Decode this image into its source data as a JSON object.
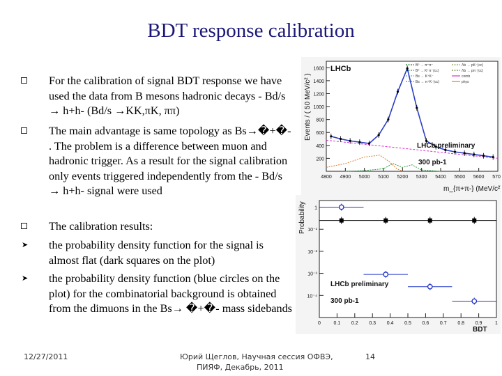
{
  "slide": {
    "title": "BDT response calibration",
    "bullets": [
      {
        "marker": "square",
        "text": "For the calibration of signal BDT response we have used the data from B mesons hadronic decays -  Bd/s → h+h-  (Bd/s →KK,πK, ππ)"
      },
      {
        "marker": "square",
        "text": "The main advantage is same topology as Bs→�+�- . The problem is a difference between muon and hadronic trigger. As a result for the signal calibration only events triggered independently from the - Bd/s → h+h-   signal were used"
      },
      {
        "marker": "square",
        "text": "The calibration results:"
      },
      {
        "marker": "arrow",
        "text": "the probability density function for the signal is almost flat (dark squares on the plot)"
      },
      {
        "marker": "arrow",
        "text": "the probability density function (blue  circles on the plot) for the combinatorial background is obtained from the dimuons in the Bs→ �+�- mass sidebands"
      }
    ],
    "footer": {
      "date": "12/27/2011",
      "author_line1": "Юрий Щеглов, Научная сессия ОФВЭ,",
      "author_line2": "ПИЯФ, Декабрь, 2011",
      "page_number": "14"
    }
  },
  "chart_data": [
    {
      "type": "line",
      "title": "",
      "header_label": "LHCb",
      "xlabel": "m_{π+π-} (MeV/c²)",
      "ylabel": "Events / ( 50 MeV/c² )",
      "xlim": [
        4800,
        5700
      ],
      "ylim": [
        0,
        1700
      ],
      "x_ticks": [
        4800,
        4900,
        5000,
        5100,
        5200,
        5300,
        5400,
        5500,
        5600,
        5700
      ],
      "y_ticks": [
        200,
        400,
        600,
        800,
        1000,
        1200,
        1400,
        1600
      ],
      "legend_entries": [
        "B⁰ → π⁺π⁻",
        "B⁰ → K⁺π⁻(cc)",
        "Bs → K⁺K⁻",
        "Bs → π⁺K⁻(cc)",
        "Λb → pK⁻(cc)",
        "Λb → pπ⁻(cc)",
        "comb",
        "phys"
      ],
      "annotations": [
        "LHCb preliminary",
        "300 pb-1"
      ],
      "colors": {
        "total": "#2b3fc4",
        "data": "#000000",
        "comb": "#d92fd0",
        "phys": "#e07a2a",
        "peaks": "#2e9d47"
      },
      "series": [
        {
          "name": "data",
          "x": [
            4825,
            4875,
            4925,
            4975,
            5025,
            5075,
            5125,
            5175,
            5225,
            5275,
            5325,
            5375,
            5425,
            5475,
            5525,
            5575,
            5625,
            5675
          ],
          "values": [
            540,
            500,
            470,
            450,
            430,
            560,
            800,
            1230,
            1590,
            980,
            470,
            380,
            330,
            300,
            280,
            260,
            240,
            220
          ]
        },
        {
          "name": "comb",
          "x": [
            4800,
            5700
          ],
          "values": [
            480,
            200
          ]
        }
      ]
    },
    {
      "type": "scatter",
      "title": "",
      "xlabel": "BDT",
      "ylabel": "Probability",
      "log_y": true,
      "xlim": [
        0,
        1
      ],
      "ylim": [
        1e-05,
        2
      ],
      "x_ticks": [
        0,
        0.1,
        0.2,
        0.3,
        0.4,
        0.5,
        0.6,
        0.7,
        0.8,
        0.9,
        1
      ],
      "y_tick_labels": [
        "1",
        "10⁻¹",
        "10⁻²",
        "10⁻³",
        "10⁻⁴"
      ],
      "annotations": [
        "LHCb preliminary",
        "300 pb-1"
      ],
      "series": [
        {
          "name": "",
          "marker": "square",
          "color": "#000000",
          "bins": [
            [
              0,
              0.25
            ],
            [
              0.25,
              0.5
            ],
            [
              0.5,
              0.75
            ],
            [
              0.75,
              1
            ]
          ],
          "values": [
            0.25,
            0.25,
            0.25,
            0.25
          ]
        },
        {
          "name": "",
          "marker": "circle",
          "color": "#2436c7",
          "bins": [
            [
              0,
              0.25
            ],
            [
              0.25,
              0.5
            ],
            [
              0.5,
              0.75
            ],
            [
              0.75,
              1
            ]
          ],
          "values": [
            0.999,
            0.0009,
            0.00025,
            5.5e-05
          ]
        }
      ]
    }
  ]
}
